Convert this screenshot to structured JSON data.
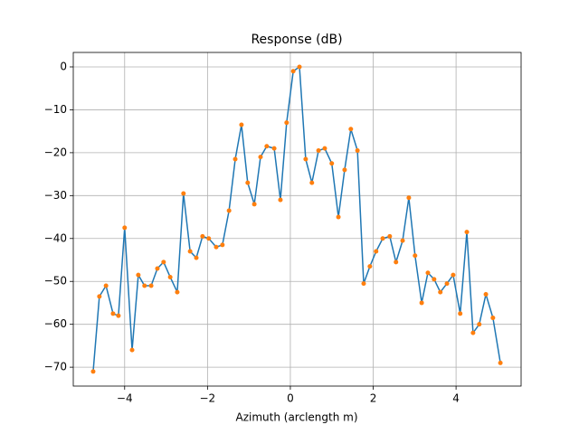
{
  "chart_data": {
    "type": "line",
    "title": "Response (dB)",
    "x_label": "Azimuth (arclength m)",
    "x": [
      -4.76,
      -4.61,
      -4.45,
      -4.28,
      -4.15,
      -4.0,
      -3.82,
      -3.67,
      -3.52,
      -3.36,
      -3.21,
      -3.06,
      -2.9,
      -2.73,
      -2.58,
      -2.42,
      -2.27,
      -2.12,
      -1.97,
      -1.79,
      -1.64,
      -1.48,
      -1.33,
      -1.18,
      -1.03,
      -0.87,
      -0.72,
      -0.57,
      -0.39,
      -0.24,
      -0.09,
      0.07,
      0.22,
      0.37,
      0.52,
      0.68,
      0.83,
      1.0,
      1.16,
      1.31,
      1.46,
      1.62,
      1.77,
      1.92,
      2.07,
      2.23,
      2.4,
      2.55,
      2.71,
      2.86,
      3.01,
      3.17,
      3.32,
      3.47,
      3.62,
      3.78,
      3.93,
      4.1,
      4.26,
      4.41,
      4.56,
      4.72,
      4.89,
      5.07
    ],
    "values": [
      -71,
      -53.5,
      -51,
      -57.5,
      -58,
      -37.5,
      -66,
      -48.5,
      -51,
      -51,
      -47,
      -45.5,
      -49,
      -52.5,
      -29.5,
      -43,
      -44.5,
      -39.5,
      -40,
      -42,
      -41.5,
      -33.5,
      -21.5,
      -13.5,
      -27,
      -32,
      -21,
      -18.5,
      -19,
      -31,
      -13,
      -1,
      0,
      -21.5,
      -27,
      -19.5,
      -19,
      -22.5,
      -35,
      -24,
      -14.5,
      -19.5,
      -50.5,
      -46.5,
      -43,
      -40,
      -39.5,
      -45.5,
      -40.5,
      -30.5,
      -44,
      -55,
      -48,
      -49.5,
      -52.5,
      -50.5,
      -48.5,
      -57.5,
      -38.5,
      -62,
      -60,
      -53,
      -58.5,
      -69
    ],
    "line_color": "#1f77b4",
    "marker_color": "#ff7f0e",
    "xlim": [
      -5.24,
      5.57
    ],
    "ylim": [
      -74.4,
      3.37
    ],
    "xticks": [
      {
        "value": -4,
        "label": "−4"
      },
      {
        "value": -2,
        "label": "−2"
      },
      0,
      2,
      4
    ],
    "yticks": [
      {
        "value": -70,
        "label": "−70"
      },
      {
        "value": -60,
        "label": "−60"
      },
      {
        "value": -50,
        "label": "−50"
      },
      {
        "value": -40,
        "label": "−40"
      },
      {
        "value": -30,
        "label": "−30"
      },
      {
        "value": -20,
        "label": "−20"
      },
      {
        "value": -10,
        "label": "−10"
      },
      0
    ],
    "grid": true
  }
}
